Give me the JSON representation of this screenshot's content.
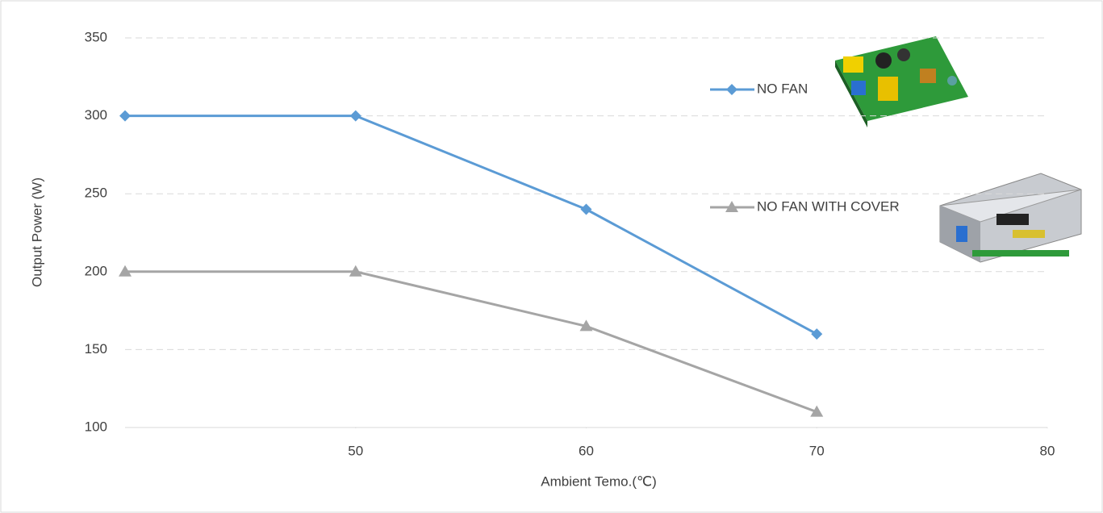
{
  "chart_data": {
    "type": "line",
    "x_label": "Ambient Temo.(℃)",
    "y_label": "Output  Power (W)",
    "x": [
      40,
      50,
      60,
      70
    ],
    "series": [
      {
        "name": "NO FAN",
        "color": "#5b9bd5",
        "marker": "diamond",
        "values": [
          300,
          300,
          240,
          160
        ]
      },
      {
        "name": "NO FAN WITH COVER",
        "color": "#a5a5a5",
        "marker": "triangle",
        "values": [
          200,
          200,
          165,
          110
        ]
      }
    ],
    "xlim": [
      40,
      80
    ],
    "xticks": [
      50,
      60,
      70,
      80
    ],
    "ylim": [
      100,
      350
    ],
    "yticks": [
      100,
      150,
      200,
      250,
      300,
      350
    ],
    "grid": true
  }
}
